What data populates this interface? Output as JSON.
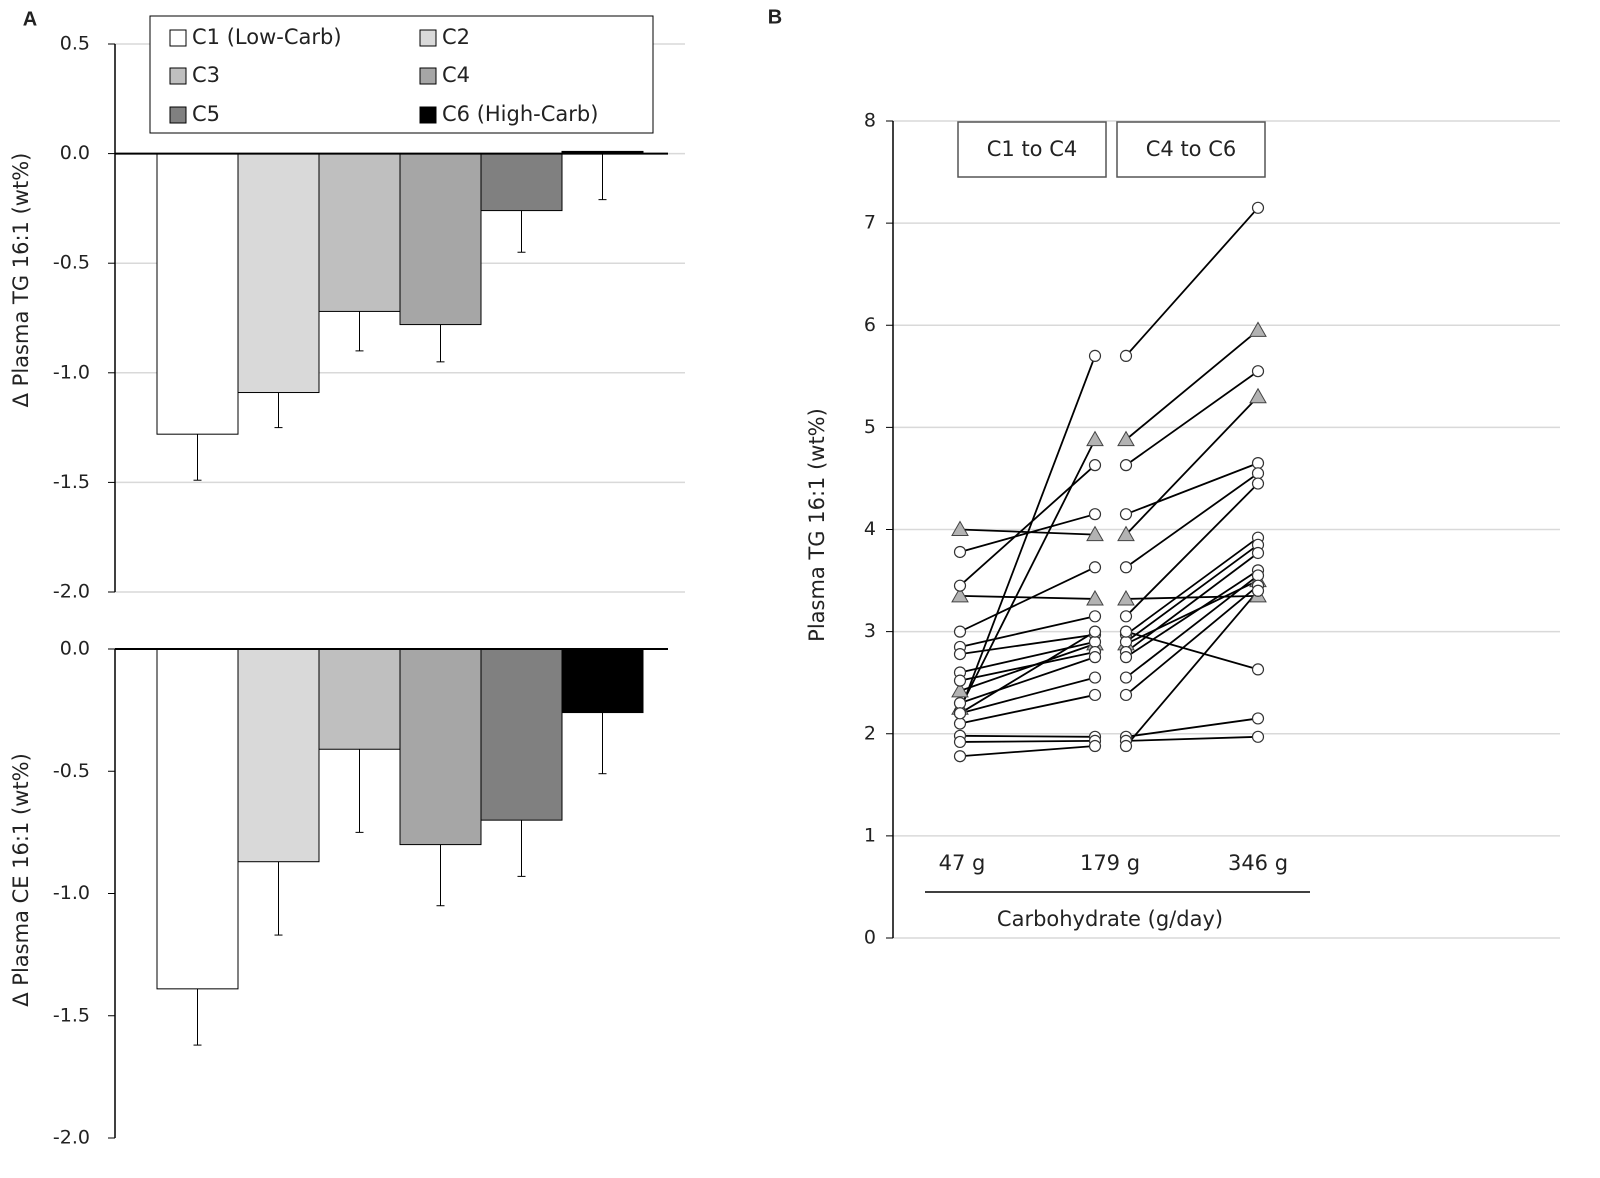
{
  "chart_data": [
    {
      "type": "bar",
      "panel": "A",
      "ylabel": "Δ Plasma TG 16:1 (wt%)",
      "legend": [
        {
          "name": "C1 (Low-Carb)",
          "color": "#ffffff"
        },
        {
          "name": "C2",
          "color": "#d9d9d9"
        },
        {
          "name": "C3",
          "color": "#bfbfbf"
        },
        {
          "name": "C4",
          "color": "#a6a6a6"
        },
        {
          "name": "C5",
          "color": "#808080"
        },
        {
          "name": "C6 (High-Carb)",
          "color": "#000000"
        }
      ],
      "values": [
        -1.28,
        -1.09,
        -0.72,
        -0.78,
        -0.26,
        0.01
      ],
      "errors": [
        0.21,
        0.16,
        0.18,
        0.17,
        0.19,
        0.22
      ],
      "ylim": [
        -2.0,
        0.5
      ],
      "yticks": [
        0.5,
        {
          "value": 0,
          "label": "0.0"
        },
        -0.5,
        {
          "value": -1,
          "label": "-1.0"
        },
        -1.5,
        {
          "value": -2,
          "label": "-2.0"
        }
      ],
      "grid": true
    },
    {
      "type": "bar",
      "ylabel": "Δ Plasma CE 16:1 (wt%)",
      "colors": [
        "#ffffff",
        "#d9d9d9",
        "#bfbfbf",
        "#a6a6a6",
        "#808080",
        "#000000"
      ],
      "values": [
        -1.39,
        -0.87,
        -0.41,
        -0.8,
        -0.7,
        -0.26
      ],
      "errors": [
        0.23,
        0.3,
        0.34,
        0.25,
        0.23,
        0.25
      ],
      "ylim": [
        -2.0,
        0.0
      ],
      "yticks": [
        {
          "value": 0,
          "label": "0.0"
        },
        -0.5,
        {
          "value": -1,
          "label": "-1.0"
        },
        -1.5,
        {
          "value": -2,
          "label": "-2.0"
        }
      ],
      "grid": false
    },
    {
      "type": "line",
      "panel": "B",
      "ylabel": "Plasma TG 16:1 (wt%)",
      "xlabel": "Carbohydrate (g/day)",
      "categories": [
        "47 g",
        "179 g",
        "346 g"
      ],
      "annotations": [
        "C1 to C4",
        "C4 to C6"
      ],
      "ylim": [
        0,
        8
      ],
      "yticks": [
        0,
        1,
        2,
        3,
        4,
        5,
        6,
        7,
        8
      ],
      "grid": true,
      "color": "#000000",
      "series": [
        {
          "marker": "triangle",
          "values": [
            4.0,
            3.95,
            5.3
          ]
        },
        {
          "marker": "triangle",
          "values": [
            2.25,
            4.88,
            5.95
          ]
        },
        {
          "marker": "triangle",
          "values": [
            3.35,
            3.32,
            3.35
          ]
        },
        {
          "marker": "triangle",
          "values": [
            2.42,
            2.88,
            3.5
          ]
        },
        {
          "marker": "circle",
          "values": [
            2.22,
            5.7,
            7.15
          ]
        },
        {
          "marker": "circle",
          "values": [
            3.45,
            4.63,
            5.55
          ]
        },
        {
          "marker": "circle",
          "values": [
            3.78,
            4.15,
            4.65
          ]
        },
        {
          "marker": "circle",
          "values": [
            3.0,
            3.63,
            4.55
          ]
        },
        {
          "marker": "circle",
          "values": [
            2.85,
            3.15,
            4.45
          ]
        },
        {
          "marker": "circle",
          "values": [
            2.78,
            2.97,
            3.92
          ]
        },
        {
          "marker": "circle",
          "values": [
            2.6,
            2.9,
            3.85
          ]
        },
        {
          "marker": "circle",
          "values": [
            2.52,
            2.8,
            3.77
          ]
        },
        {
          "marker": "circle",
          "values": [
            2.3,
            2.75,
            3.6
          ]
        },
        {
          "marker": "circle",
          "values": [
            2.2,
            2.55,
            3.55
          ]
        },
        {
          "marker": "circle",
          "values": [
            2.1,
            2.38,
            3.45
          ]
        },
        {
          "marker": "circle",
          "values": [
            1.98,
            1.97,
            2.15
          ]
        },
        {
          "marker": "circle",
          "values": [
            1.92,
            1.93,
            1.97
          ]
        },
        {
          "marker": "circle",
          "values": [
            1.78,
            1.88,
            3.4
          ]
        },
        {
          "marker": "circle",
          "values": [
            2.2,
            3.0,
            2.63
          ]
        }
      ]
    }
  ]
}
